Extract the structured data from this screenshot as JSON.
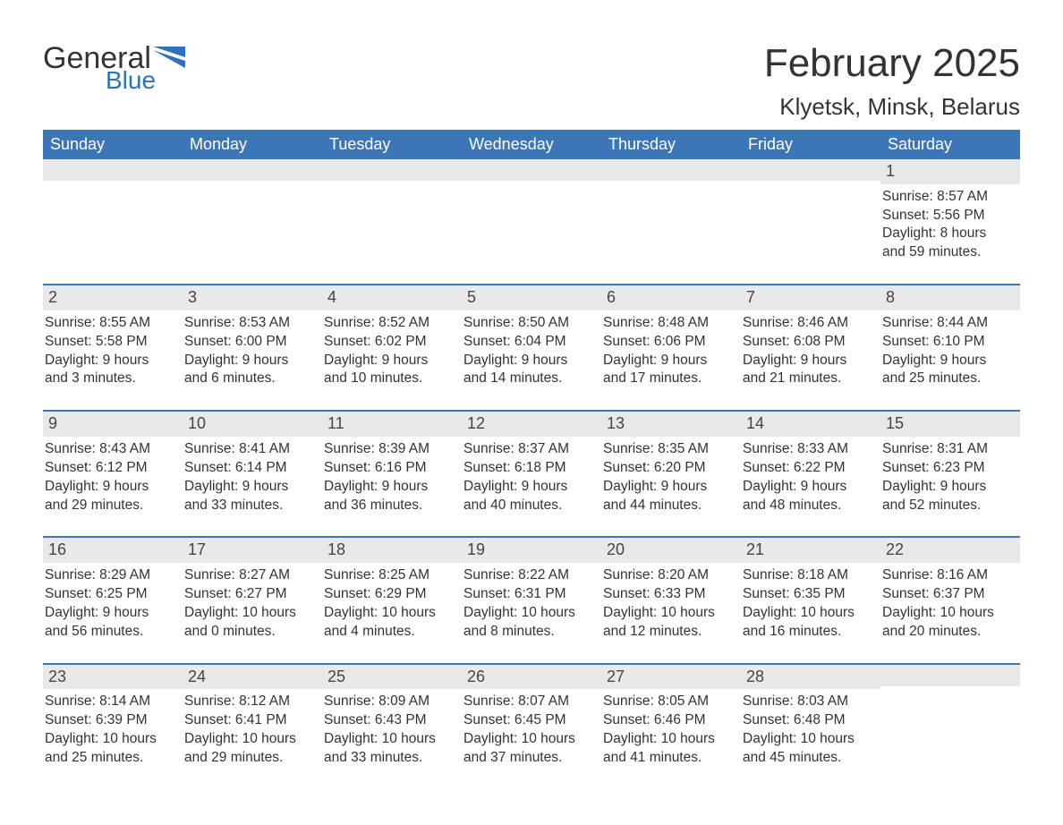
{
  "brand": {
    "part1": "General",
    "part2": "Blue",
    "accent_color": "#2b74b8"
  },
  "title": "February 2025",
  "location": "Klyetsk, Minsk, Belarus",
  "colors": {
    "header_bg": "#3d76b6",
    "header_text": "#ffffff",
    "daynum_bg": "#e9e9e9",
    "week_rule": "#3d76b6",
    "page_bg": "#ffffff",
    "text": "#333333"
  },
  "days_of_week": [
    "Sunday",
    "Monday",
    "Tuesday",
    "Wednesday",
    "Thursday",
    "Friday",
    "Saturday"
  ],
  "weeks": [
    [
      {
        "n": "",
        "sunrise": "",
        "sunset": "",
        "daylight1": "",
        "daylight2": ""
      },
      {
        "n": "",
        "sunrise": "",
        "sunset": "",
        "daylight1": "",
        "daylight2": ""
      },
      {
        "n": "",
        "sunrise": "",
        "sunset": "",
        "daylight1": "",
        "daylight2": ""
      },
      {
        "n": "",
        "sunrise": "",
        "sunset": "",
        "daylight1": "",
        "daylight2": ""
      },
      {
        "n": "",
        "sunrise": "",
        "sunset": "",
        "daylight1": "",
        "daylight2": ""
      },
      {
        "n": "",
        "sunrise": "",
        "sunset": "",
        "daylight1": "",
        "daylight2": ""
      },
      {
        "n": "1",
        "sunrise": "Sunrise: 8:57 AM",
        "sunset": "Sunset: 5:56 PM",
        "daylight1": "Daylight: 8 hours",
        "daylight2": "and 59 minutes."
      }
    ],
    [
      {
        "n": "2",
        "sunrise": "Sunrise: 8:55 AM",
        "sunset": "Sunset: 5:58 PM",
        "daylight1": "Daylight: 9 hours",
        "daylight2": "and 3 minutes."
      },
      {
        "n": "3",
        "sunrise": "Sunrise: 8:53 AM",
        "sunset": "Sunset: 6:00 PM",
        "daylight1": "Daylight: 9 hours",
        "daylight2": "and 6 minutes."
      },
      {
        "n": "4",
        "sunrise": "Sunrise: 8:52 AM",
        "sunset": "Sunset: 6:02 PM",
        "daylight1": "Daylight: 9 hours",
        "daylight2": "and 10 minutes."
      },
      {
        "n": "5",
        "sunrise": "Sunrise: 8:50 AM",
        "sunset": "Sunset: 6:04 PM",
        "daylight1": "Daylight: 9 hours",
        "daylight2": "and 14 minutes."
      },
      {
        "n": "6",
        "sunrise": "Sunrise: 8:48 AM",
        "sunset": "Sunset: 6:06 PM",
        "daylight1": "Daylight: 9 hours",
        "daylight2": "and 17 minutes."
      },
      {
        "n": "7",
        "sunrise": "Sunrise: 8:46 AM",
        "sunset": "Sunset: 6:08 PM",
        "daylight1": "Daylight: 9 hours",
        "daylight2": "and 21 minutes."
      },
      {
        "n": "8",
        "sunrise": "Sunrise: 8:44 AM",
        "sunset": "Sunset: 6:10 PM",
        "daylight1": "Daylight: 9 hours",
        "daylight2": "and 25 minutes."
      }
    ],
    [
      {
        "n": "9",
        "sunrise": "Sunrise: 8:43 AM",
        "sunset": "Sunset: 6:12 PM",
        "daylight1": "Daylight: 9 hours",
        "daylight2": "and 29 minutes."
      },
      {
        "n": "10",
        "sunrise": "Sunrise: 8:41 AM",
        "sunset": "Sunset: 6:14 PM",
        "daylight1": "Daylight: 9 hours",
        "daylight2": "and 33 minutes."
      },
      {
        "n": "11",
        "sunrise": "Sunrise: 8:39 AM",
        "sunset": "Sunset: 6:16 PM",
        "daylight1": "Daylight: 9 hours",
        "daylight2": "and 36 minutes."
      },
      {
        "n": "12",
        "sunrise": "Sunrise: 8:37 AM",
        "sunset": "Sunset: 6:18 PM",
        "daylight1": "Daylight: 9 hours",
        "daylight2": "and 40 minutes."
      },
      {
        "n": "13",
        "sunrise": "Sunrise: 8:35 AM",
        "sunset": "Sunset: 6:20 PM",
        "daylight1": "Daylight: 9 hours",
        "daylight2": "and 44 minutes."
      },
      {
        "n": "14",
        "sunrise": "Sunrise: 8:33 AM",
        "sunset": "Sunset: 6:22 PM",
        "daylight1": "Daylight: 9 hours",
        "daylight2": "and 48 minutes."
      },
      {
        "n": "15",
        "sunrise": "Sunrise: 8:31 AM",
        "sunset": "Sunset: 6:23 PM",
        "daylight1": "Daylight: 9 hours",
        "daylight2": "and 52 minutes."
      }
    ],
    [
      {
        "n": "16",
        "sunrise": "Sunrise: 8:29 AM",
        "sunset": "Sunset: 6:25 PM",
        "daylight1": "Daylight: 9 hours",
        "daylight2": "and 56 minutes."
      },
      {
        "n": "17",
        "sunrise": "Sunrise: 8:27 AM",
        "sunset": "Sunset: 6:27 PM",
        "daylight1": "Daylight: 10 hours",
        "daylight2": "and 0 minutes."
      },
      {
        "n": "18",
        "sunrise": "Sunrise: 8:25 AM",
        "sunset": "Sunset: 6:29 PM",
        "daylight1": "Daylight: 10 hours",
        "daylight2": "and 4 minutes."
      },
      {
        "n": "19",
        "sunrise": "Sunrise: 8:22 AM",
        "sunset": "Sunset: 6:31 PM",
        "daylight1": "Daylight: 10 hours",
        "daylight2": "and 8 minutes."
      },
      {
        "n": "20",
        "sunrise": "Sunrise: 8:20 AM",
        "sunset": "Sunset: 6:33 PM",
        "daylight1": "Daylight: 10 hours",
        "daylight2": "and 12 minutes."
      },
      {
        "n": "21",
        "sunrise": "Sunrise: 8:18 AM",
        "sunset": "Sunset: 6:35 PM",
        "daylight1": "Daylight: 10 hours",
        "daylight2": "and 16 minutes."
      },
      {
        "n": "22",
        "sunrise": "Sunrise: 8:16 AM",
        "sunset": "Sunset: 6:37 PM",
        "daylight1": "Daylight: 10 hours",
        "daylight2": "and 20 minutes."
      }
    ],
    [
      {
        "n": "23",
        "sunrise": "Sunrise: 8:14 AM",
        "sunset": "Sunset: 6:39 PM",
        "daylight1": "Daylight: 10 hours",
        "daylight2": "and 25 minutes."
      },
      {
        "n": "24",
        "sunrise": "Sunrise: 8:12 AM",
        "sunset": "Sunset: 6:41 PM",
        "daylight1": "Daylight: 10 hours",
        "daylight2": "and 29 minutes."
      },
      {
        "n": "25",
        "sunrise": "Sunrise: 8:09 AM",
        "sunset": "Sunset: 6:43 PM",
        "daylight1": "Daylight: 10 hours",
        "daylight2": "and 33 minutes."
      },
      {
        "n": "26",
        "sunrise": "Sunrise: 8:07 AM",
        "sunset": "Sunset: 6:45 PM",
        "daylight1": "Daylight: 10 hours",
        "daylight2": "and 37 minutes."
      },
      {
        "n": "27",
        "sunrise": "Sunrise: 8:05 AM",
        "sunset": "Sunset: 6:46 PM",
        "daylight1": "Daylight: 10 hours",
        "daylight2": "and 41 minutes."
      },
      {
        "n": "28",
        "sunrise": "Sunrise: 8:03 AM",
        "sunset": "Sunset: 6:48 PM",
        "daylight1": "Daylight: 10 hours",
        "daylight2": "and 45 minutes."
      },
      {
        "n": "",
        "sunrise": "",
        "sunset": "",
        "daylight1": "",
        "daylight2": ""
      }
    ]
  ]
}
